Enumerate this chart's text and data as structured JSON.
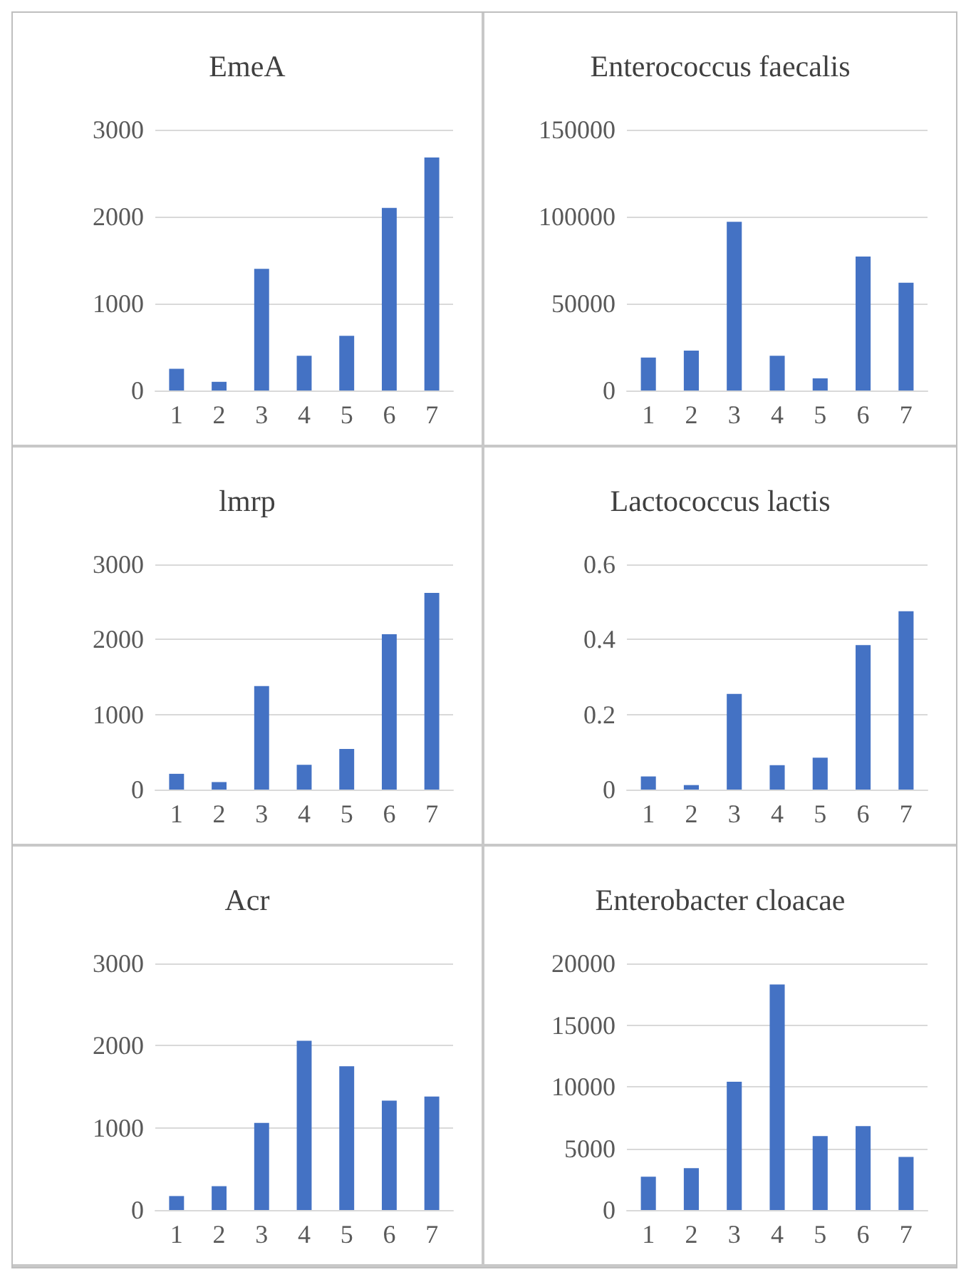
{
  "chart_data": [
    {
      "type": "bar",
      "title": "EmeA",
      "categories": [
        "1",
        "2",
        "3",
        "4",
        "5",
        "6",
        "7"
      ],
      "values": [
        250,
        100,
        1400,
        400,
        630,
        2100,
        2680
      ],
      "color": "#4472c4",
      "ylim": [
        0,
        3000
      ],
      "yticks": [
        0,
        1000,
        2000,
        3000
      ],
      "grid": "y"
    },
    {
      "type": "bar",
      "title": "Enterococcus faecalis",
      "categories": [
        "1",
        "2",
        "3",
        "4",
        "5",
        "6",
        "7"
      ],
      "values": [
        19000,
        23000,
        97000,
        20000,
        7000,
        77000,
        62000
      ],
      "color": "#4472c4",
      "ylim": [
        0,
        150000
      ],
      "yticks": [
        0,
        50000,
        100000,
        150000
      ],
      "grid": "y"
    },
    {
      "type": "bar",
      "title": "lmrp",
      "categories": [
        "1",
        "2",
        "3",
        "4",
        "5",
        "6",
        "7"
      ],
      "values": [
        210,
        100,
        1380,
        330,
        540,
        2070,
        2620
      ],
      "color": "#4472c4",
      "ylim": [
        0,
        3000
      ],
      "yticks": [
        0,
        1000,
        2000,
        3000
      ],
      "grid": "y"
    },
    {
      "type": "bar",
      "title": "Lactococcus lactis",
      "categories": [
        "1",
        "2",
        "3",
        "4",
        "5",
        "6",
        "7"
      ],
      "values": [
        0.035,
        0.012,
        0.255,
        0.065,
        0.085,
        0.385,
        0.475
      ],
      "color": "#4472c4",
      "ylim": [
        0,
        0.6
      ],
      "yticks": [
        0,
        0.2,
        0.4,
        0.6
      ],
      "grid": "y"
    },
    {
      "type": "bar",
      "title": "Acr",
      "categories": [
        "1",
        "2",
        "3",
        "4",
        "5",
        "6",
        "7"
      ],
      "values": [
        170,
        290,
        1060,
        2060,
        1750,
        1330,
        1380
      ],
      "color": "#4472c4",
      "ylim": [
        0,
        3000
      ],
      "yticks": [
        0,
        1000,
        2000,
        3000
      ],
      "grid": "y"
    },
    {
      "type": "bar",
      "title": "Enterobacter cloacae",
      "categories": [
        "1",
        "2",
        "3",
        "4",
        "5",
        "6",
        "7"
      ],
      "values": [
        2700,
        3400,
        10400,
        18300,
        6000,
        6800,
        4300
      ],
      "color": "#4472c4",
      "ylim": [
        0,
        20000
      ],
      "yticks": [
        0,
        5000,
        10000,
        15000,
        20000
      ],
      "grid": "y"
    }
  ]
}
